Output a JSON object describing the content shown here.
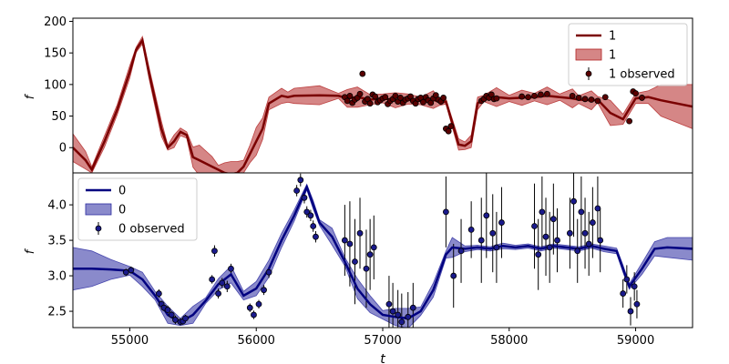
{
  "chart_data": [
    {
      "type": "line",
      "panel": "top",
      "ylabel": "f",
      "xlim": [
        54550,
        59450
      ],
      "ylim": [
        -40,
        205
      ],
      "yticks": [
        0,
        50,
        100,
        150,
        200
      ],
      "legend": {
        "placement": "top-right",
        "entries": [
          "1",
          "1",
          "1 observed"
        ]
      },
      "colors": {
        "line": "#7a0000",
        "band": "#b22222",
        "band_opacity": 0.55,
        "points": "#5a0000"
      },
      "series": [
        {
          "name": "1",
          "kind": "model-mean",
          "x": [
            54550,
            54650,
            54700,
            54800,
            54900,
            55000,
            55050,
            55100,
            55150,
            55250,
            55300,
            55350,
            55400,
            55450,
            55500,
            55550,
            55650,
            55700,
            55750,
            55800,
            55850,
            55900,
            55950,
            56000,
            56050,
            56100,
            56200,
            56250,
            56300,
            56500,
            56650,
            56720,
            56800,
            56900,
            57000,
            57100,
            57200,
            57300,
            57400,
            57450,
            57500,
            57600,
            57650,
            57700,
            57750,
            57800,
            57900,
            58000,
            58100,
            58200,
            58300,
            58400,
            58500,
            58550,
            58650,
            58700,
            58800,
            58900,
            59000,
            59100,
            59200,
            59450
          ],
          "y": [
            0,
            -20,
            -35,
            10,
            60,
            120,
            155,
            170,
            120,
            30,
            0,
            10,
            25,
            20,
            -15,
            -20,
            -30,
            -35,
            -40,
            -42,
            -40,
            -30,
            -10,
            10,
            30,
            70,
            82,
            80,
            82,
            83,
            82,
            78,
            80,
            76,
            78,
            75,
            77,
            74,
            76,
            72,
            73,
            5,
            3,
            10,
            70,
            78,
            80,
            78,
            79,
            80,
            82,
            80,
            78,
            76,
            75,
            76,
            55,
            45,
            78,
            80,
            75,
            65
          ]
        },
        {
          "name": "1",
          "kind": "uncertainty-band",
          "x": [
            54550,
            54650,
            54700,
            54800,
            54900,
            55000,
            55050,
            55100,
            55150,
            55250,
            55300,
            55350,
            55400,
            55450,
            55500,
            55550,
            55650,
            55700,
            55750,
            55800,
            55850,
            55900,
            55950,
            56000,
            56050,
            56100,
            56200,
            56250,
            56300,
            56500,
            56650,
            56720,
            56800,
            56900,
            57000,
            57100,
            57200,
            57300,
            57400,
            57450,
            57500,
            57600,
            57650,
            57700,
            57750,
            57800,
            57900,
            58000,
            58100,
            58200,
            58300,
            58400,
            58500,
            58550,
            58650,
            58700,
            58800,
            58900,
            59000,
            59100,
            59200,
            59450
          ],
          "halfwidth": [
            22,
            14,
            5,
            9,
            8,
            10,
            4,
            6,
            9,
            12,
            4,
            10,
            6,
            5,
            16,
            24,
            16,
            7,
            16,
            20,
            18,
            10,
            14,
            22,
            17,
            10,
            12,
            8,
            12,
            15,
            4,
            14,
            16,
            8,
            7,
            12,
            8,
            6,
            14,
            5,
            4,
            9,
            6,
            10,
            10,
            5,
            15,
            5,
            12,
            6,
            14,
            5,
            15,
            6,
            15,
            5,
            20,
            8,
            8,
            10,
            25,
            35
          ]
        },
        {
          "name": "1 observed",
          "kind": "points",
          "x": [
            56700,
            56720,
            56740,
            56760,
            56780,
            56800,
            56820,
            56840,
            56860,
            56880,
            56900,
            56920,
            56940,
            56960,
            56980,
            57000,
            57020,
            57040,
            57060,
            57080,
            57100,
            57120,
            57140,
            57160,
            57180,
            57200,
            57220,
            57240,
            57260,
            57280,
            57300,
            57320,
            57340,
            57360,
            57380,
            57400,
            57420,
            57440,
            57460,
            57480,
            57500,
            57520,
            57540,
            57780,
            57800,
            57820,
            57840,
            57860,
            57880,
            57900,
            58100,
            58150,
            58200,
            58250,
            58300,
            58500,
            58550,
            58600,
            58650,
            58700,
            58950,
            58980,
            59000,
            59050,
            58760
          ],
          "y": [
            80,
            74,
            82,
            71,
            76,
            79,
            85,
            117,
            73,
            77,
            70,
            84,
            81,
            72,
            75,
            78,
            80,
            69,
            74,
            77,
            82,
            73,
            79,
            71,
            76,
            78,
            81,
            74,
            70,
            77,
            79,
            72,
            80,
            75,
            71,
            78,
            83,
            76,
            73,
            79,
            30,
            26,
            34,
            74,
            77,
            82,
            79,
            84,
            77,
            78,
            81,
            80,
            82,
            84,
            85,
            82,
            79,
            77,
            76,
            74,
            42,
            89,
            86,
            79,
            80
          ]
        }
      ]
    },
    {
      "type": "line",
      "panel": "bottom",
      "xlabel": "t",
      "ylabel": "f",
      "xlim": [
        54550,
        59450
      ],
      "ylim": [
        2.27,
        4.45
      ],
      "xticks": [
        55000,
        56000,
        57000,
        58000,
        59000
      ],
      "yticks": [
        2.5,
        3.0,
        3.5,
        4.0
      ],
      "legend": {
        "placement": "top-left",
        "entries": [
          "0",
          "0",
          "0 observed"
        ]
      },
      "colors": {
        "line": "#000080",
        "band": "#2a2aa0",
        "band_opacity": 0.55,
        "points": "#1a1a8c"
      },
      "series": [
        {
          "name": "0",
          "kind": "model-mean",
          "x": [
            54550,
            54700,
            54850,
            55000,
            55100,
            55200,
            55300,
            55400,
            55500,
            55600,
            55700,
            55800,
            55900,
            56000,
            56100,
            56200,
            56300,
            56400,
            56450,
            56500,
            56600,
            56700,
            56800,
            56900,
            57000,
            57100,
            57200,
            57300,
            57400,
            57500,
            57550,
            57650,
            57750,
            57850,
            57950,
            58050,
            58150,
            58250,
            58350,
            58450,
            58550,
            58650,
            58750,
            58850,
            58900,
            58950,
            59050,
            59150,
            59250,
            59450
          ],
          "y": [
            3.1,
            3.1,
            3.09,
            3.07,
            2.95,
            2.72,
            2.45,
            2.35,
            2.45,
            2.65,
            2.88,
            3.02,
            2.72,
            2.82,
            3.1,
            3.5,
            3.85,
            4.25,
            4.0,
            3.75,
            3.55,
            3.2,
            2.82,
            2.6,
            2.45,
            2.42,
            2.4,
            2.5,
            2.8,
            3.3,
            3.4,
            3.38,
            3.4,
            3.38,
            3.42,
            3.4,
            3.42,
            3.38,
            3.42,
            3.4,
            3.38,
            3.42,
            3.38,
            3.35,
            3.1,
            2.85,
            3.1,
            3.38,
            3.4,
            3.38
          ]
        },
        {
          "name": "0",
          "kind": "uncertainty-band",
          "x": [
            54550,
            54700,
            54850,
            55000,
            55100,
            55200,
            55300,
            55400,
            55500,
            55600,
            55700,
            55800,
            55900,
            56000,
            56100,
            56200,
            56300,
            56400,
            56450,
            56500,
            56600,
            56700,
            56800,
            56900,
            57000,
            57100,
            57200,
            57300,
            57400,
            57500,
            57550,
            57650,
            57750,
            57850,
            57950,
            58050,
            58150,
            58250,
            58350,
            58450,
            58550,
            58650,
            58750,
            58850,
            58900,
            58950,
            59050,
            59150,
            59250,
            59450
          ],
          "halfwidth": [
            0.3,
            0.25,
            0.14,
            0.06,
            0.1,
            0.06,
            0.12,
            0.05,
            0.12,
            0.04,
            0.08,
            0.12,
            0.06,
            0.1,
            0.12,
            0.1,
            0.08,
            0.04,
            0.06,
            0.04,
            0.12,
            0.06,
            0.14,
            0.12,
            0.06,
            0.12,
            0.14,
            0.06,
            0.1,
            0.05,
            0.14,
            0.04,
            0.03,
            0.03,
            0.04,
            0.03,
            0.03,
            0.03,
            0.03,
            0.03,
            0.03,
            0.03,
            0.04,
            0.04,
            0.05,
            0.04,
            0.08,
            0.1,
            0.14,
            0.16
          ]
        },
        {
          "name": "0 observed",
          "kind": "points",
          "x": [
            54970,
            55010,
            55230,
            55250,
            55270,
            55300,
            55330,
            55360,
            55400,
            55420,
            55440,
            55650,
            55670,
            55700,
            55730,
            55770,
            55800,
            55950,
            55980,
            56020,
            56060,
            56100,
            56320,
            56350,
            56380,
            56400,
            56430,
            56450,
            56470,
            56700,
            56740,
            56780,
            56820,
            56870,
            56900,
            56930,
            57050,
            57080,
            57120,
            57150,
            57200,
            57240,
            57500,
            57560,
            57620,
            57700,
            57780,
            57820,
            57870,
            57900,
            57940,
            58200,
            58230,
            58260,
            58290,
            58320,
            58350,
            58380,
            58480,
            58510,
            58540,
            58570,
            58600,
            58630,
            58660,
            58700,
            58720,
            58900,
            58930,
            58960,
            58990,
            59010
          ],
          "y": [
            3.05,
            3.08,
            2.75,
            2.6,
            2.55,
            2.52,
            2.45,
            2.38,
            2.35,
            2.36,
            2.4,
            2.95,
            3.35,
            2.75,
            2.9,
            2.85,
            3.1,
            2.55,
            2.45,
            2.6,
            2.8,
            3.05,
            4.2,
            4.35,
            4.1,
            3.9,
            3.85,
            3.7,
            3.55,
            3.5,
            3.45,
            3.2,
            3.6,
            3.1,
            3.3,
            3.4,
            2.6,
            2.5,
            2.45,
            2.35,
            2.42,
            2.55,
            3.9,
            3.0,
            3.35,
            3.65,
            3.5,
            3.85,
            3.6,
            3.4,
            3.75,
            3.7,
            3.3,
            3.9,
            3.55,
            3.4,
            3.8,
            3.5,
            3.6,
            4.05,
            3.35,
            3.9,
            3.6,
            3.45,
            3.75,
            3.95,
            3.5,
            2.75,
            2.95,
            2.5,
            2.85,
            2.6
          ],
          "err": [
            0.05,
            0.05,
            0.06,
            0.05,
            0.05,
            0.06,
            0.05,
            0.06,
            0.05,
            0.05,
            0.05,
            0.06,
            0.08,
            0.07,
            0.07,
            0.08,
            0.07,
            0.06,
            0.06,
            0.06,
            0.07,
            0.08,
            0.08,
            0.09,
            0.08,
            0.08,
            0.08,
            0.08,
            0.08,
            0.5,
            0.6,
            0.6,
            0.5,
            0.55,
            0.5,
            0.45,
            0.4,
            0.4,
            0.35,
            0.4,
            0.35,
            0.35,
            0.5,
            0.45,
            0.45,
            0.4,
            0.6,
            0.6,
            0.55,
            0.5,
            0.5,
            0.6,
            0.5,
            0.5,
            0.55,
            0.5,
            0.5,
            0.45,
            0.5,
            0.5,
            0.45,
            0.5,
            0.5,
            0.45,
            0.5,
            0.45,
            0.45,
            0.2,
            0.2,
            0.2,
            0.2,
            0.2
          ]
        }
      ]
    }
  ]
}
